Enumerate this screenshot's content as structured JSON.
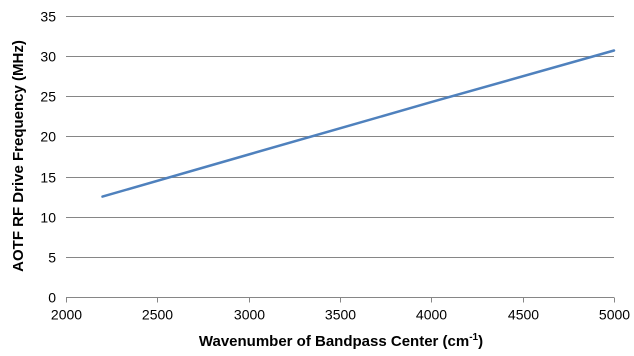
{
  "chart_data": {
    "type": "line",
    "title": "",
    "xlabel_main": "Wavenumber of Bandpass Center (cm",
    "xlabel_sup": "-1",
    "xlabel_close": ")",
    "ylabel": "AOTF RF Drive Frequency (MHz)",
    "xlim": [
      2000,
      5000
    ],
    "ylim": [
      0,
      35
    ],
    "x_ticks": [
      "2000",
      "2500",
      "3000",
      "3500",
      "4000",
      "4500",
      "5000"
    ],
    "y_ticks": [
      "0",
      "5",
      "10",
      "15",
      "20",
      "25",
      "30",
      "35"
    ],
    "grid": "horizontal",
    "legend": "none",
    "series": [
      {
        "color": "#4f81bd",
        "x": [
          2200,
          3000,
          4000,
          5000
        ],
        "y": [
          12.5,
          17.75,
          24.27,
          30.7
        ]
      }
    ]
  },
  "colors": {
    "gridline": "#868686",
    "axis": "#868686"
  }
}
